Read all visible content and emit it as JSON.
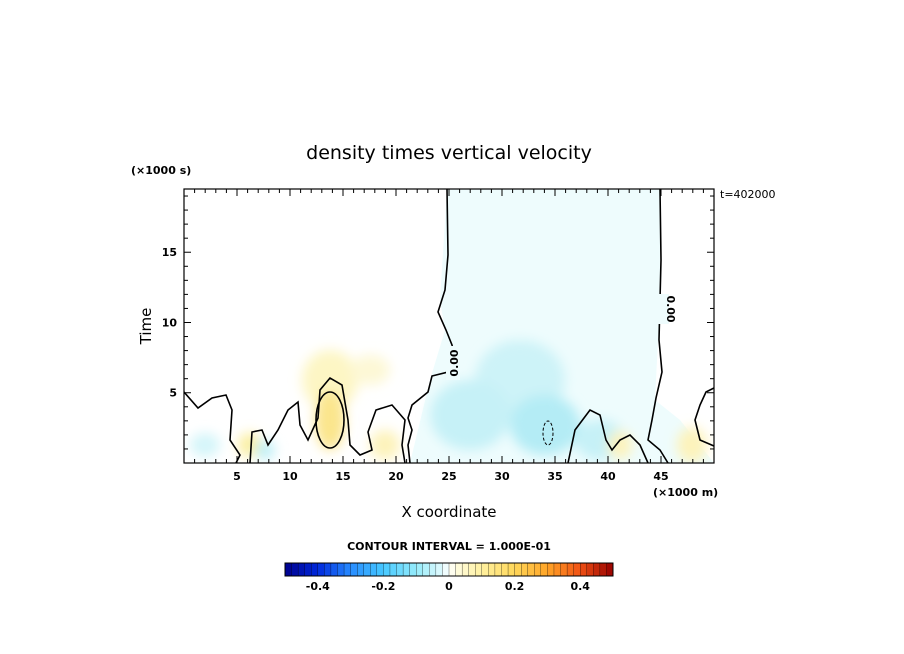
{
  "chart_data": {
    "type": "heatmap",
    "title": "density times vertical velocity",
    "xlabel": "X coordinate",
    "ylabel": "Time",
    "x_unit": "(×1000 m)",
    "y_unit": "(×1000 s)",
    "xlim": [
      0,
      50
    ],
    "ylim": [
      0,
      19.5
    ],
    "x_ticks": [
      5,
      10,
      15,
      20,
      25,
      30,
      35,
      40,
      45
    ],
    "y_ticks": [
      5,
      10,
      15
    ],
    "time_label": "t=402000",
    "contour_interval_label": "CONTOUR INTERVAL = 1.000E-01",
    "contour_labels": [
      "0.00",
      "0.00"
    ],
    "colorbar": {
      "range": [
        -0.5,
        0.5
      ],
      "ticks": [
        "-0.4",
        "-0.2",
        "0",
        "0.2",
        "0.4"
      ],
      "tick_values": [
        -0.4,
        -0.2,
        0,
        0.2,
        0.4
      ],
      "n_levels": 50
    },
    "regions": [
      {
        "description": "weak negative (updraft-free) plume",
        "x_range": [
          24.5,
          44.5
        ],
        "y_range": [
          0,
          19.5
        ],
        "value": -0.02
      },
      {
        "description": "negative cell",
        "x_center": 33,
        "y_center": 3,
        "value": -0.15
      },
      {
        "description": "negative cell",
        "x_center": 28,
        "y_center": 4,
        "value": -0.1
      },
      {
        "description": "positive cell",
        "x_center": 13.5,
        "y_center": 3,
        "value": 0.18
      },
      {
        "description": "positive cell",
        "x_center": 11,
        "y_center": 5.5,
        "value": 0.08
      }
    ]
  }
}
